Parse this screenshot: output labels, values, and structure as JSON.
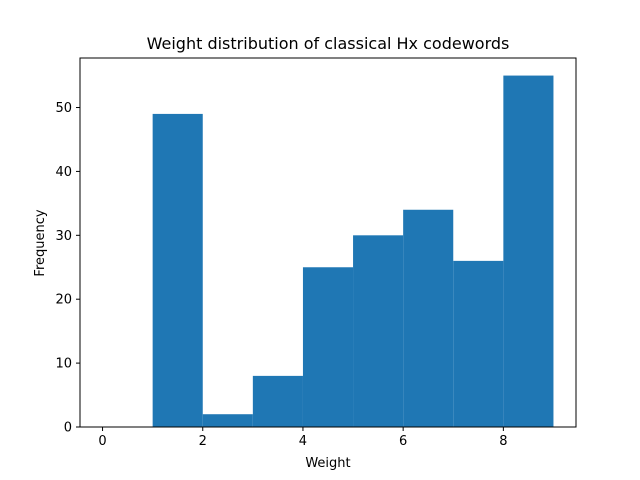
{
  "chart_data": {
    "type": "bar",
    "title": "Weight distribution of classical Hx codewords",
    "xlabel": "Weight",
    "ylabel": "Frequency",
    "bar_color": "#1f77b4",
    "bins": [
      {
        "x0": 0,
        "x1": 1,
        "value": 0
      },
      {
        "x0": 1,
        "x1": 2,
        "value": 49
      },
      {
        "x0": 2,
        "x1": 3,
        "value": 2
      },
      {
        "x0": 3,
        "x1": 4,
        "value": 8
      },
      {
        "x0": 4,
        "x1": 5,
        "value": 25
      },
      {
        "x0": 5,
        "x1": 6,
        "value": 30
      },
      {
        "x0": 6,
        "x1": 7,
        "value": 34
      },
      {
        "x0": 7,
        "x1": 8,
        "value": 26
      },
      {
        "x0": 8,
        "x1": 9,
        "value": 55
      }
    ],
    "xlim": [
      -0.45,
      9.45
    ],
    "ylim": [
      0,
      57.75
    ],
    "xticks": [
      0,
      2,
      4,
      6,
      8
    ],
    "yticks": [
      0,
      10,
      20,
      30,
      40,
      50
    ],
    "grid": false,
    "legend": false
  }
}
